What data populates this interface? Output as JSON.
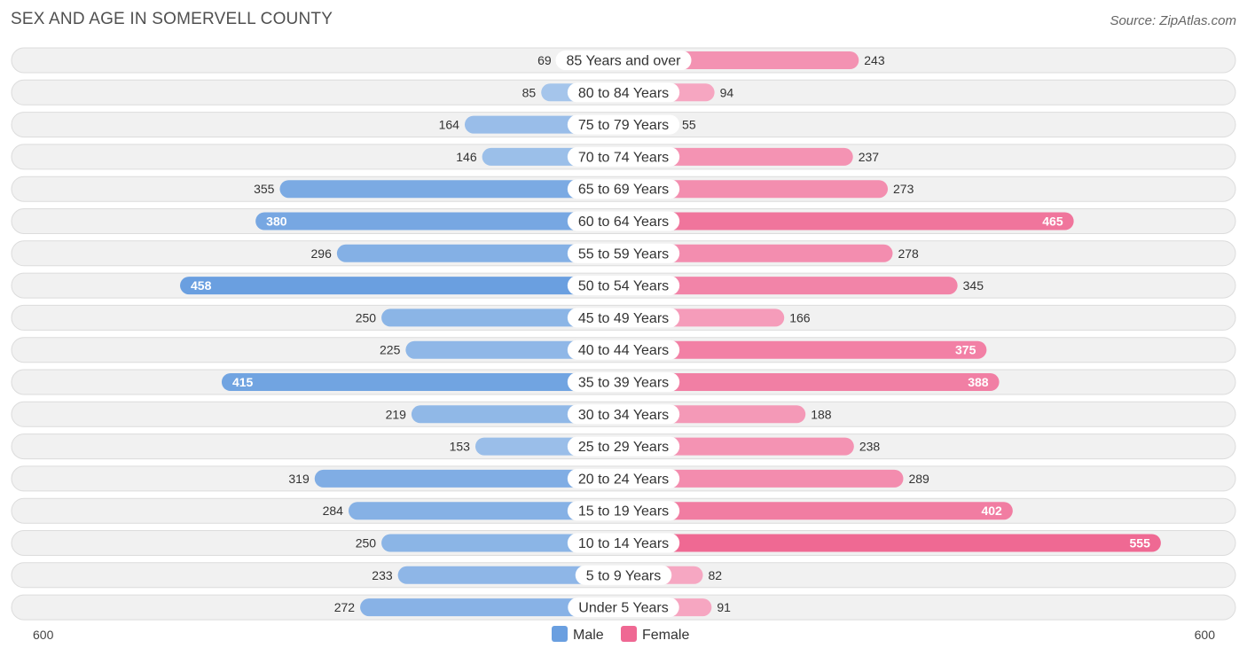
{
  "title": "SEX AND AGE IN SOMERVELL COUNTY",
  "source": "Source: ZipAtlas.com",
  "colors": {
    "male_light": "#a9c8ec",
    "male_dark": "#6a9fe0",
    "female_light": "#f6aac4",
    "female_dark": "#ef6893",
    "row_bg": "#f1f1f1",
    "row_border": "#dcdcdc"
  },
  "chart_data": {
    "type": "bar",
    "orientation": "horizontal-diverging",
    "title": "SEX AND AGE IN SOMERVELL COUNTY",
    "categories": [
      "85 Years and over",
      "80 to 84 Years",
      "75 to 79 Years",
      "70 to 74 Years",
      "65 to 69 Years",
      "60 to 64 Years",
      "55 to 59 Years",
      "50 to 54 Years",
      "45 to 49 Years",
      "40 to 44 Years",
      "35 to 39 Years",
      "30 to 34 Years",
      "25 to 29 Years",
      "20 to 24 Years",
      "15 to 19 Years",
      "10 to 14 Years",
      "5 to 9 Years",
      "Under 5 Years"
    ],
    "series": [
      {
        "name": "Male",
        "values": [
          69,
          85,
          164,
          146,
          355,
          380,
          296,
          458,
          250,
          225,
          415,
          219,
          153,
          319,
          284,
          250,
          233,
          272
        ]
      },
      {
        "name": "Female",
        "values": [
          243,
          94,
          55,
          237,
          273,
          465,
          278,
          345,
          166,
          375,
          388,
          188,
          238,
          289,
          402,
          555,
          82,
          91
        ]
      }
    ],
    "axis": {
      "left_label": "600",
      "right_label": "600",
      "max": 600
    },
    "legend": {
      "position": "bottom-center",
      "entries": [
        "Male",
        "Female"
      ]
    }
  }
}
